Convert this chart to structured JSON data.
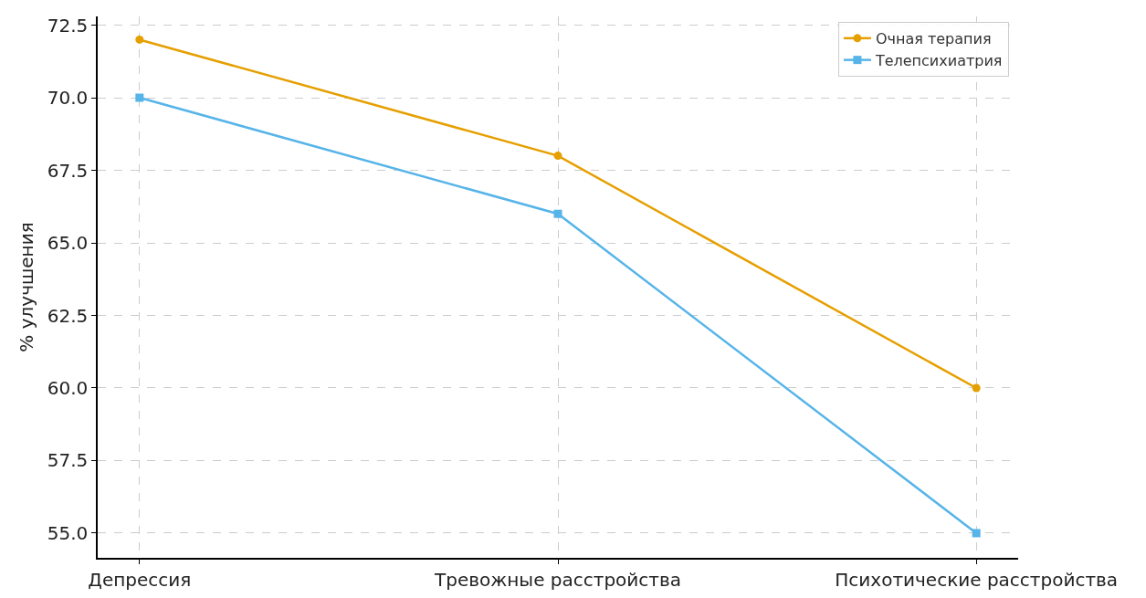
{
  "chart_data": {
    "type": "line",
    "ylabel": "% улучшения",
    "categories": [
      "Депрессия",
      "Тревожные расстройства",
      "Психотические расстройства"
    ],
    "series": [
      {
        "name": "Очная терапия",
        "color": "#e69f00",
        "marker": "circle",
        "values": [
          72,
          68,
          60
        ]
      },
      {
        "name": "Телепсихиатрия",
        "color": "#56b4e9",
        "marker": "square",
        "values": [
          70,
          66,
          55
        ]
      }
    ],
    "ylim": [
      54.15,
      72.8
    ],
    "yticks": [
      {
        "value": 55,
        "label": "55.0"
      },
      57.5,
      {
        "value": 60,
        "label": "60.0"
      },
      62.5,
      {
        "value": 65,
        "label": "65.0"
      },
      67.5,
      {
        "value": 70,
        "label": "70.0"
      },
      72.5
    ],
    "grid": true,
    "legend": "top right",
    "line_style": "solid"
  }
}
